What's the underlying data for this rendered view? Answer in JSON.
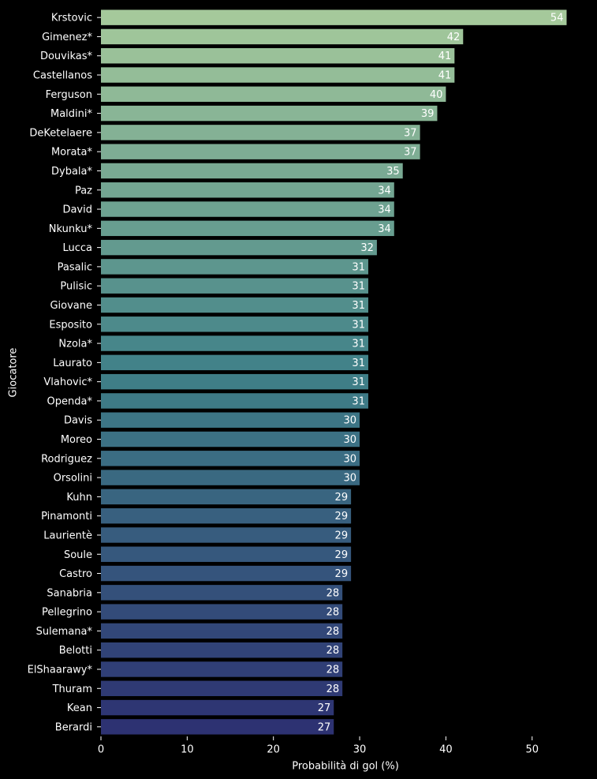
{
  "chart_data": {
    "type": "barh",
    "x_label": "Probabilità di gol (%)",
    "y_label": "Giocatore",
    "categories": [
      "Krstovic",
      "Gimenez*",
      "Douvikas*",
      "Castellanos",
      "Ferguson",
      "Maldini*",
      "DeKetelaere",
      "Morata*",
      "Dybala*",
      "Paz",
      "David",
      "Nkunku*",
      "Lucca",
      "Pasalic",
      "Pulisic",
      "Giovane",
      "Esposito",
      "Nzola*",
      "Laurato",
      "Vlahovic*",
      "Openda*",
      "Davis",
      "Moreo",
      "Rodriguez",
      "Orsolini",
      "Kuhn",
      "Pinamonti",
      "Laurientè",
      "Soule",
      "Castro",
      "Sanabria",
      "Pellegrino",
      "Sulemana*",
      "Belotti",
      "ElShaarawy*",
      "Thuram",
      "Kean",
      "Berardi"
    ],
    "values": [
      54,
      42,
      41,
      41,
      40,
      39,
      37,
      37,
      35,
      34,
      34,
      34,
      32,
      31,
      31,
      31,
      31,
      31,
      31,
      31,
      31,
      30,
      30,
      30,
      30,
      29,
      29,
      29,
      29,
      29,
      28,
      28,
      28,
      28,
      28,
      28,
      27,
      27
    ],
    "palette": [
      "#a5c99b",
      "#3f8088",
      "#2d3272"
    ],
    "xlim": [
      0,
      56.7
    ],
    "xticks": [
      0,
      10,
      20,
      30,
      40,
      50
    ],
    "background": "#000000"
  }
}
